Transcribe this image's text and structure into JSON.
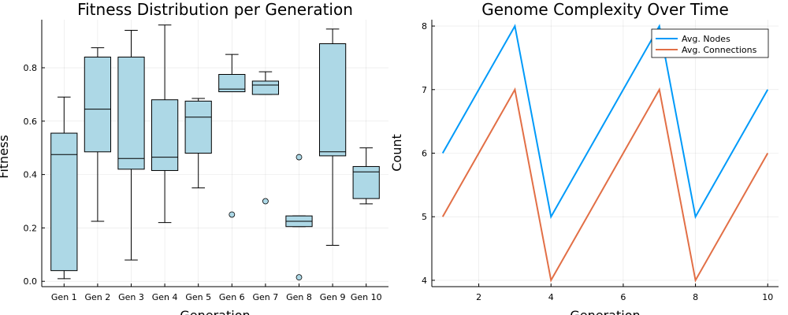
{
  "chart_data": [
    {
      "type": "box",
      "title": "Fitness Distribution per Generation",
      "xlabel": "Generation",
      "ylabel": "Fitness",
      "ylim": [
        -0.02,
        0.98
      ],
      "yticks": [
        0.0,
        0.2,
        0.4,
        0.6,
        0.8
      ],
      "ytick_labels": [
        "0.0",
        "0.2",
        "0.4",
        "0.6",
        "0.8"
      ],
      "grid": true,
      "color": "#add8e6",
      "categories": [
        "Gen 1",
        "Gen 2",
        "Gen 3",
        "Gen 4",
        "Gen 5",
        "Gen 6",
        "Gen 7",
        "Gen 8",
        "Gen 9",
        "Gen 10"
      ],
      "boxes": [
        {
          "min": 0.01,
          "q1": 0.04,
          "median": 0.475,
          "q3": 0.555,
          "max": 0.69,
          "outliers": []
        },
        {
          "min": 0.225,
          "q1": 0.485,
          "median": 0.645,
          "q3": 0.84,
          "max": 0.875,
          "outliers": []
        },
        {
          "min": 0.08,
          "q1": 0.42,
          "median": 0.46,
          "q3": 0.84,
          "max": 0.94,
          "outliers": []
        },
        {
          "min": 0.22,
          "q1": 0.415,
          "median": 0.465,
          "q3": 0.68,
          "max": 0.96,
          "outliers": []
        },
        {
          "min": 0.35,
          "q1": 0.48,
          "median": 0.615,
          "q3": 0.675,
          "max": 0.685,
          "outliers": []
        },
        {
          "min": 0.71,
          "q1": 0.71,
          "median": 0.72,
          "q3": 0.775,
          "max": 0.85,
          "outliers": [
            0.25
          ]
        },
        {
          "min": 0.7,
          "q1": 0.7,
          "median": 0.735,
          "q3": 0.75,
          "max": 0.785,
          "outliers": [
            0.3
          ]
        },
        {
          "min": 0.205,
          "q1": 0.205,
          "median": 0.225,
          "q3": 0.245,
          "max": 0.245,
          "outliers": [
            0.465,
            0.015
          ]
        },
        {
          "min": 0.135,
          "q1": 0.47,
          "median": 0.485,
          "q3": 0.89,
          "max": 0.945,
          "outliers": []
        },
        {
          "min": 0.29,
          "q1": 0.31,
          "median": 0.41,
          "q3": 0.43,
          "max": 0.5,
          "outliers": []
        }
      ]
    },
    {
      "type": "line",
      "title": "Genome Complexity Over Time",
      "xlabel": "Generation",
      "ylabel": "Count",
      "xlim": [
        0.7,
        10.3
      ],
      "ylim": [
        3.9,
        8.1
      ],
      "xticks": [
        2,
        4,
        6,
        8,
        10
      ],
      "yticks": [
        4,
        5,
        6,
        7,
        8
      ],
      "grid": true,
      "legend_position": "top-right",
      "x": [
        1,
        2,
        3,
        4,
        5,
        6,
        7,
        8,
        9,
        10
      ],
      "series": [
        {
          "name": "Avg. Nodes",
          "color": "#009af9",
          "values": [
            6,
            7,
            8,
            5,
            6,
            7,
            8,
            5,
            6,
            7
          ]
        },
        {
          "name": "Avg. Connections",
          "color": "#e26f46",
          "values": [
            5,
            6,
            7,
            4,
            5,
            6,
            7,
            4,
            5,
            6
          ]
        }
      ]
    }
  ]
}
